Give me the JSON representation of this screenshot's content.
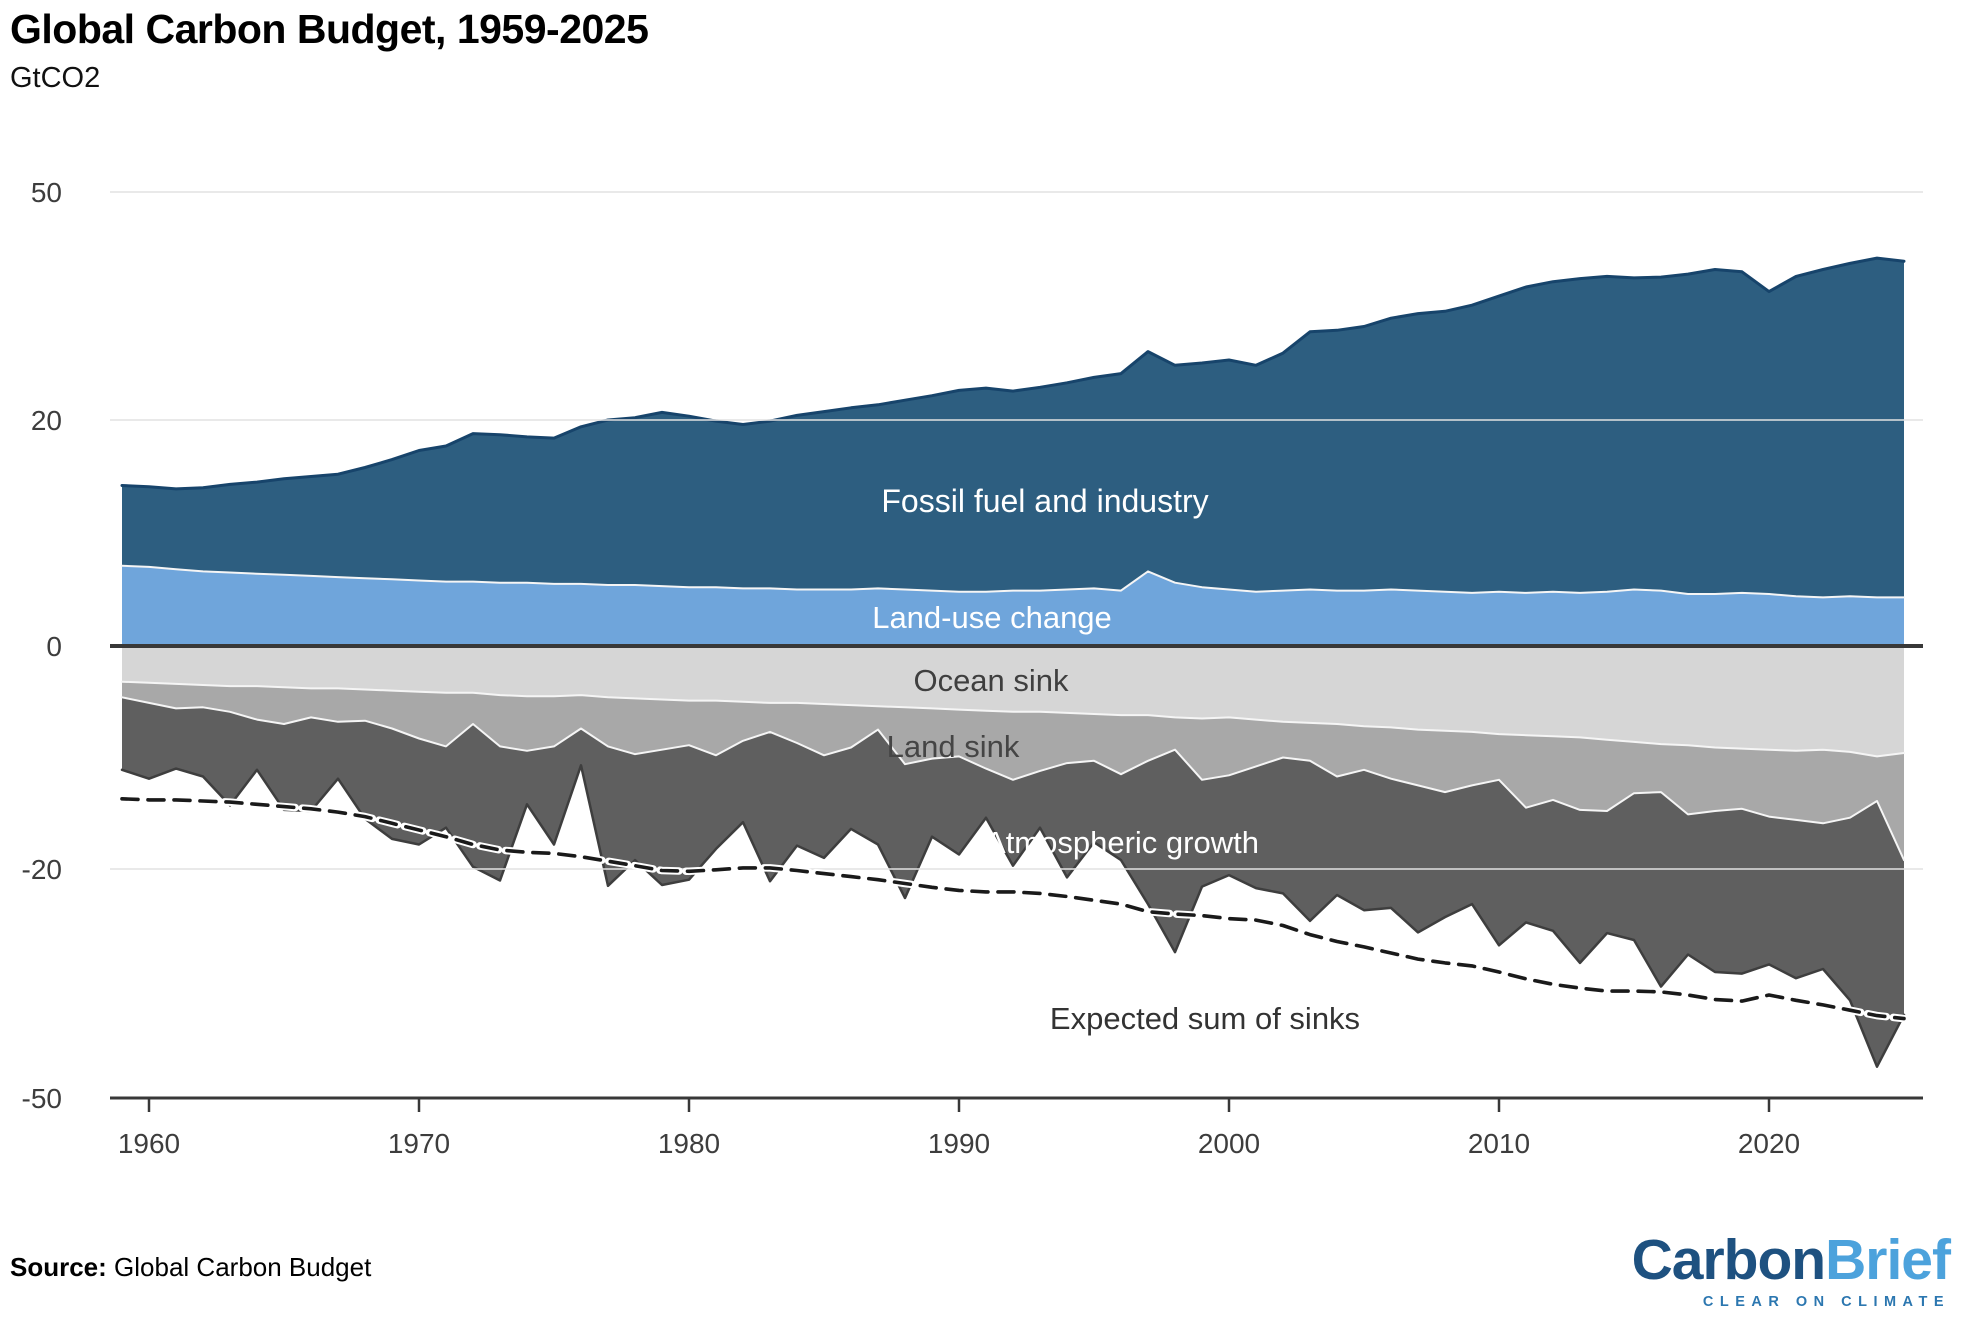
{
  "header": {
    "title": "Global Carbon Budget, 1959-2025",
    "subtitle": "GtCO2"
  },
  "chart_data": {
    "type": "area",
    "title": "Global Carbon Budget, 1959-2025",
    "ylabel": "GtCO2",
    "xlabel": "",
    "xlim": [
      1959,
      2025
    ],
    "ylim": [
      -50,
      50
    ],
    "grid": true,
    "legend_position": "inline-labels",
    "x_ticks": [
      1960,
      1970,
      1980,
      1990,
      2000,
      2010,
      2020
    ],
    "y_ticks": [
      50,
      20,
      0,
      -20,
      -50
    ],
    "years": [
      1959,
      1960,
      1961,
      1962,
      1963,
      1964,
      1965,
      1966,
      1967,
      1968,
      1969,
      1970,
      1971,
      1972,
      1973,
      1974,
      1975,
      1976,
      1977,
      1978,
      1979,
      1980,
      1981,
      1982,
      1983,
      1984,
      1985,
      1986,
      1987,
      1988,
      1989,
      1990,
      1991,
      1992,
      1993,
      1994,
      1995,
      1996,
      1997,
      1998,
      1999,
      2000,
      2001,
      2002,
      2003,
      2004,
      2005,
      2006,
      2007,
      2008,
      2009,
      2010,
      2011,
      2012,
      2013,
      2014,
      2015,
      2016,
      2017,
      2018,
      2019,
      2020,
      2021,
      2022,
      2023,
      2024,
      2025
    ],
    "series": [
      {
        "name": "Fossil fuel and industry",
        "color": "#2D5E80",
        "stack": "positive",
        "values": [
          7.1,
          7.1,
          7.1,
          7.4,
          7.8,
          8.1,
          8.5,
          8.8,
          9.1,
          9.8,
          10.6,
          11.5,
          12.0,
          13.1,
          13.1,
          12.9,
          12.9,
          13.9,
          14.6,
          14.9,
          15.7,
          15.3,
          14.7,
          14.5,
          14.8,
          15.6,
          16.1,
          16.6,
          16.9,
          17.6,
          18.3,
          19.1,
          19.4,
          18.9,
          19.4,
          19.9,
          20.5,
          21.2,
          22.4,
          21.6,
          22.3,
          22.9,
          22.4,
          23.9,
          26.6,
          26.9,
          27.4,
          28.4,
          29.1,
          29.5,
          30.4,
          31.5,
          32.8,
          33.4,
          33.9,
          34.1,
          33.7,
          33.9,
          34.6,
          35.2,
          34.8,
          32.3,
          34.5,
          35.5,
          36.2,
          37.0,
          36.6
        ]
      },
      {
        "name": "Land-use change",
        "color": "#6FA5DB",
        "stack": "positive",
        "values": [
          7.1,
          7.0,
          6.8,
          6.6,
          6.5,
          6.4,
          6.3,
          6.2,
          6.1,
          6.0,
          5.9,
          5.8,
          5.7,
          5.7,
          5.6,
          5.6,
          5.5,
          5.5,
          5.4,
          5.4,
          5.3,
          5.2,
          5.2,
          5.1,
          5.1,
          5.0,
          5.0,
          5.0,
          5.1,
          5.0,
          4.9,
          4.8,
          4.8,
          4.9,
          4.9,
          5.0,
          5.1,
          4.9,
          6.6,
          5.6,
          5.2,
          5.0,
          4.8,
          4.9,
          5.0,
          4.9,
          4.9,
          5.0,
          4.9,
          4.8,
          4.7,
          4.8,
          4.7,
          4.8,
          4.7,
          4.8,
          5.0,
          4.9,
          4.6,
          4.6,
          4.7,
          4.6,
          4.4,
          4.3,
          4.4,
          4.3,
          4.3
        ]
      },
      {
        "name": "Ocean sink",
        "color": "#D6D6D6",
        "stack": "negative",
        "values": [
          -3.2,
          -3.3,
          -3.4,
          -3.5,
          -3.6,
          -3.6,
          -3.7,
          -3.8,
          -3.8,
          -3.9,
          -4.0,
          -4.1,
          -4.2,
          -4.2,
          -4.4,
          -4.5,
          -4.5,
          -4.4,
          -4.6,
          -4.7,
          -4.8,
          -4.9,
          -4.9,
          -5.0,
          -5.1,
          -5.1,
          -5.2,
          -5.3,
          -5.4,
          -5.5,
          -5.6,
          -5.7,
          -5.8,
          -5.9,
          -5.9,
          -6.0,
          -6.1,
          -6.2,
          -6.2,
          -6.4,
          -6.5,
          -6.4,
          -6.6,
          -6.8,
          -6.9,
          -7.0,
          -7.2,
          -7.3,
          -7.5,
          -7.6,
          -7.7,
          -7.9,
          -8.0,
          -8.1,
          -8.2,
          -8.4,
          -8.6,
          -8.8,
          -8.9,
          -9.1,
          -9.2,
          -9.3,
          -9.4,
          -9.3,
          -9.5,
          -9.9,
          -9.6
        ]
      },
      {
        "name": "Land sink",
        "color": "#A8A8A8",
        "stack": "negative",
        "values": [
          -1.4,
          -1.8,
          -2.2,
          -2.0,
          -2.3,
          -3.0,
          -3.3,
          -2.6,
          -3.0,
          -2.8,
          -3.4,
          -4.2,
          -4.8,
          -2.8,
          -4.6,
          -4.9,
          -4.5,
          -3.0,
          -4.4,
          -5.0,
          -4.5,
          -4.0,
          -4.9,
          -3.5,
          -2.6,
          -3.6,
          -4.6,
          -3.8,
          -2.1,
          -5.1,
          -4.5,
          -4.2,
          -5.2,
          -6.1,
          -5.3,
          -4.5,
          -4.2,
          -5.3,
          -4.1,
          -2.9,
          -5.5,
          -5.2,
          -4.2,
          -3.2,
          -3.4,
          -4.7,
          -3.9,
          -4.6,
          -5.0,
          -5.5,
          -4.8,
          -4.1,
          -6.5,
          -5.7,
          -6.5,
          -6.4,
          -4.6,
          -4.3,
          -6.2,
          -5.7,
          -5.4,
          -6.0,
          -6.2,
          -6.6,
          -5.9,
          -4.0,
          -9.6
        ]
      },
      {
        "name": "Atmospheric growth",
        "color": "#5F5F5F",
        "stack": "negative",
        "values": [
          -6.5,
          -6.8,
          -5.4,
          -6.2,
          -8.4,
          -4.5,
          -7.7,
          -8.4,
          -5.1,
          -8.8,
          -9.9,
          -9.5,
          -7.3,
          -12.8,
          -12.5,
          -4.8,
          -8.8,
          -3.3,
          -13.2,
          -9.5,
          -12.8,
          -12.5,
          -8.4,
          -7.3,
          -13.9,
          -9.2,
          -9.2,
          -7.3,
          -10.3,
          -13.2,
          -7.0,
          -8.8,
          -4.4,
          -7.7,
          -5.1,
          -10.6,
          -7.3,
          -7.7,
          -14.3,
          -21.6,
          -10.3,
          -9.2,
          -11.7,
          -13.2,
          -16.5,
          -11.7,
          -14.3,
          -13.2,
          -15.8,
          -13.2,
          -12.1,
          -18.0,
          -12.5,
          -14.3,
          -17.6,
          -13.6,
          -16.1,
          -22.3,
          -16.1,
          -18.7,
          -19.1,
          -17.2,
          -18.7,
          -17.2,
          -21.8,
          -32.0,
          -19.9
        ]
      },
      {
        "name": "Expected sum of sinks",
        "color": "#1A1A1A",
        "type": "dashed-line",
        "values": [
          -13.7,
          -13.8,
          -13.8,
          -13.9,
          -14.0,
          -14.2,
          -14.4,
          -14.6,
          -14.9,
          -15.3,
          -15.9,
          -16.5,
          -17.1,
          -17.8,
          -18.3,
          -18.5,
          -18.6,
          -18.9,
          -19.3,
          -19.7,
          -20.2,
          -20.3,
          -20.1,
          -19.9,
          -19.9,
          -20.2,
          -20.6,
          -21.0,
          -21.4,
          -21.9,
          -22.4,
          -22.8,
          -23.0,
          -23.0,
          -23.2,
          -23.6,
          -24.1,
          -24.6,
          -25.6,
          -25.9,
          -26.1,
          -26.5,
          -26.7,
          -27.4,
          -28.6,
          -29.5,
          -30.2,
          -31.0,
          -31.8,
          -32.3,
          -32.7,
          -33.5,
          -34.4,
          -35.1,
          -35.6,
          -36.0,
          -36.0,
          -36.1,
          -36.5,
          -37.1,
          -37.3,
          -36.5,
          -37.2,
          -37.8,
          -38.5,
          -39.2,
          -39.6
        ]
      }
    ],
    "colors": {
      "fossil_border": "#17446B",
      "light_edge": "#F5F5F5",
      "dark_edge": "#3E3E3E",
      "zero_line": "#383838",
      "gridline": "#E2E2E2",
      "axis_text": "#3D3D3D"
    }
  },
  "inline_labels": {
    "fossil": "Fossil fuel and industry",
    "land_use": "Land-use change",
    "ocean": "Ocean sink",
    "land": "Land sink",
    "atmos": "Atmospheric growth",
    "expected": "Expected sum of sinks"
  },
  "footer": {
    "source_label": "Source:",
    "source_name": "Global Carbon Budget",
    "logo": {
      "word1": "Carbon",
      "word2": "Brief",
      "tagline": "CLEAR ON CLIMATE",
      "word1_color": "#1E5180",
      "word2_color": "#4CA2DC",
      "tagline_color": "#2C77B0"
    }
  }
}
